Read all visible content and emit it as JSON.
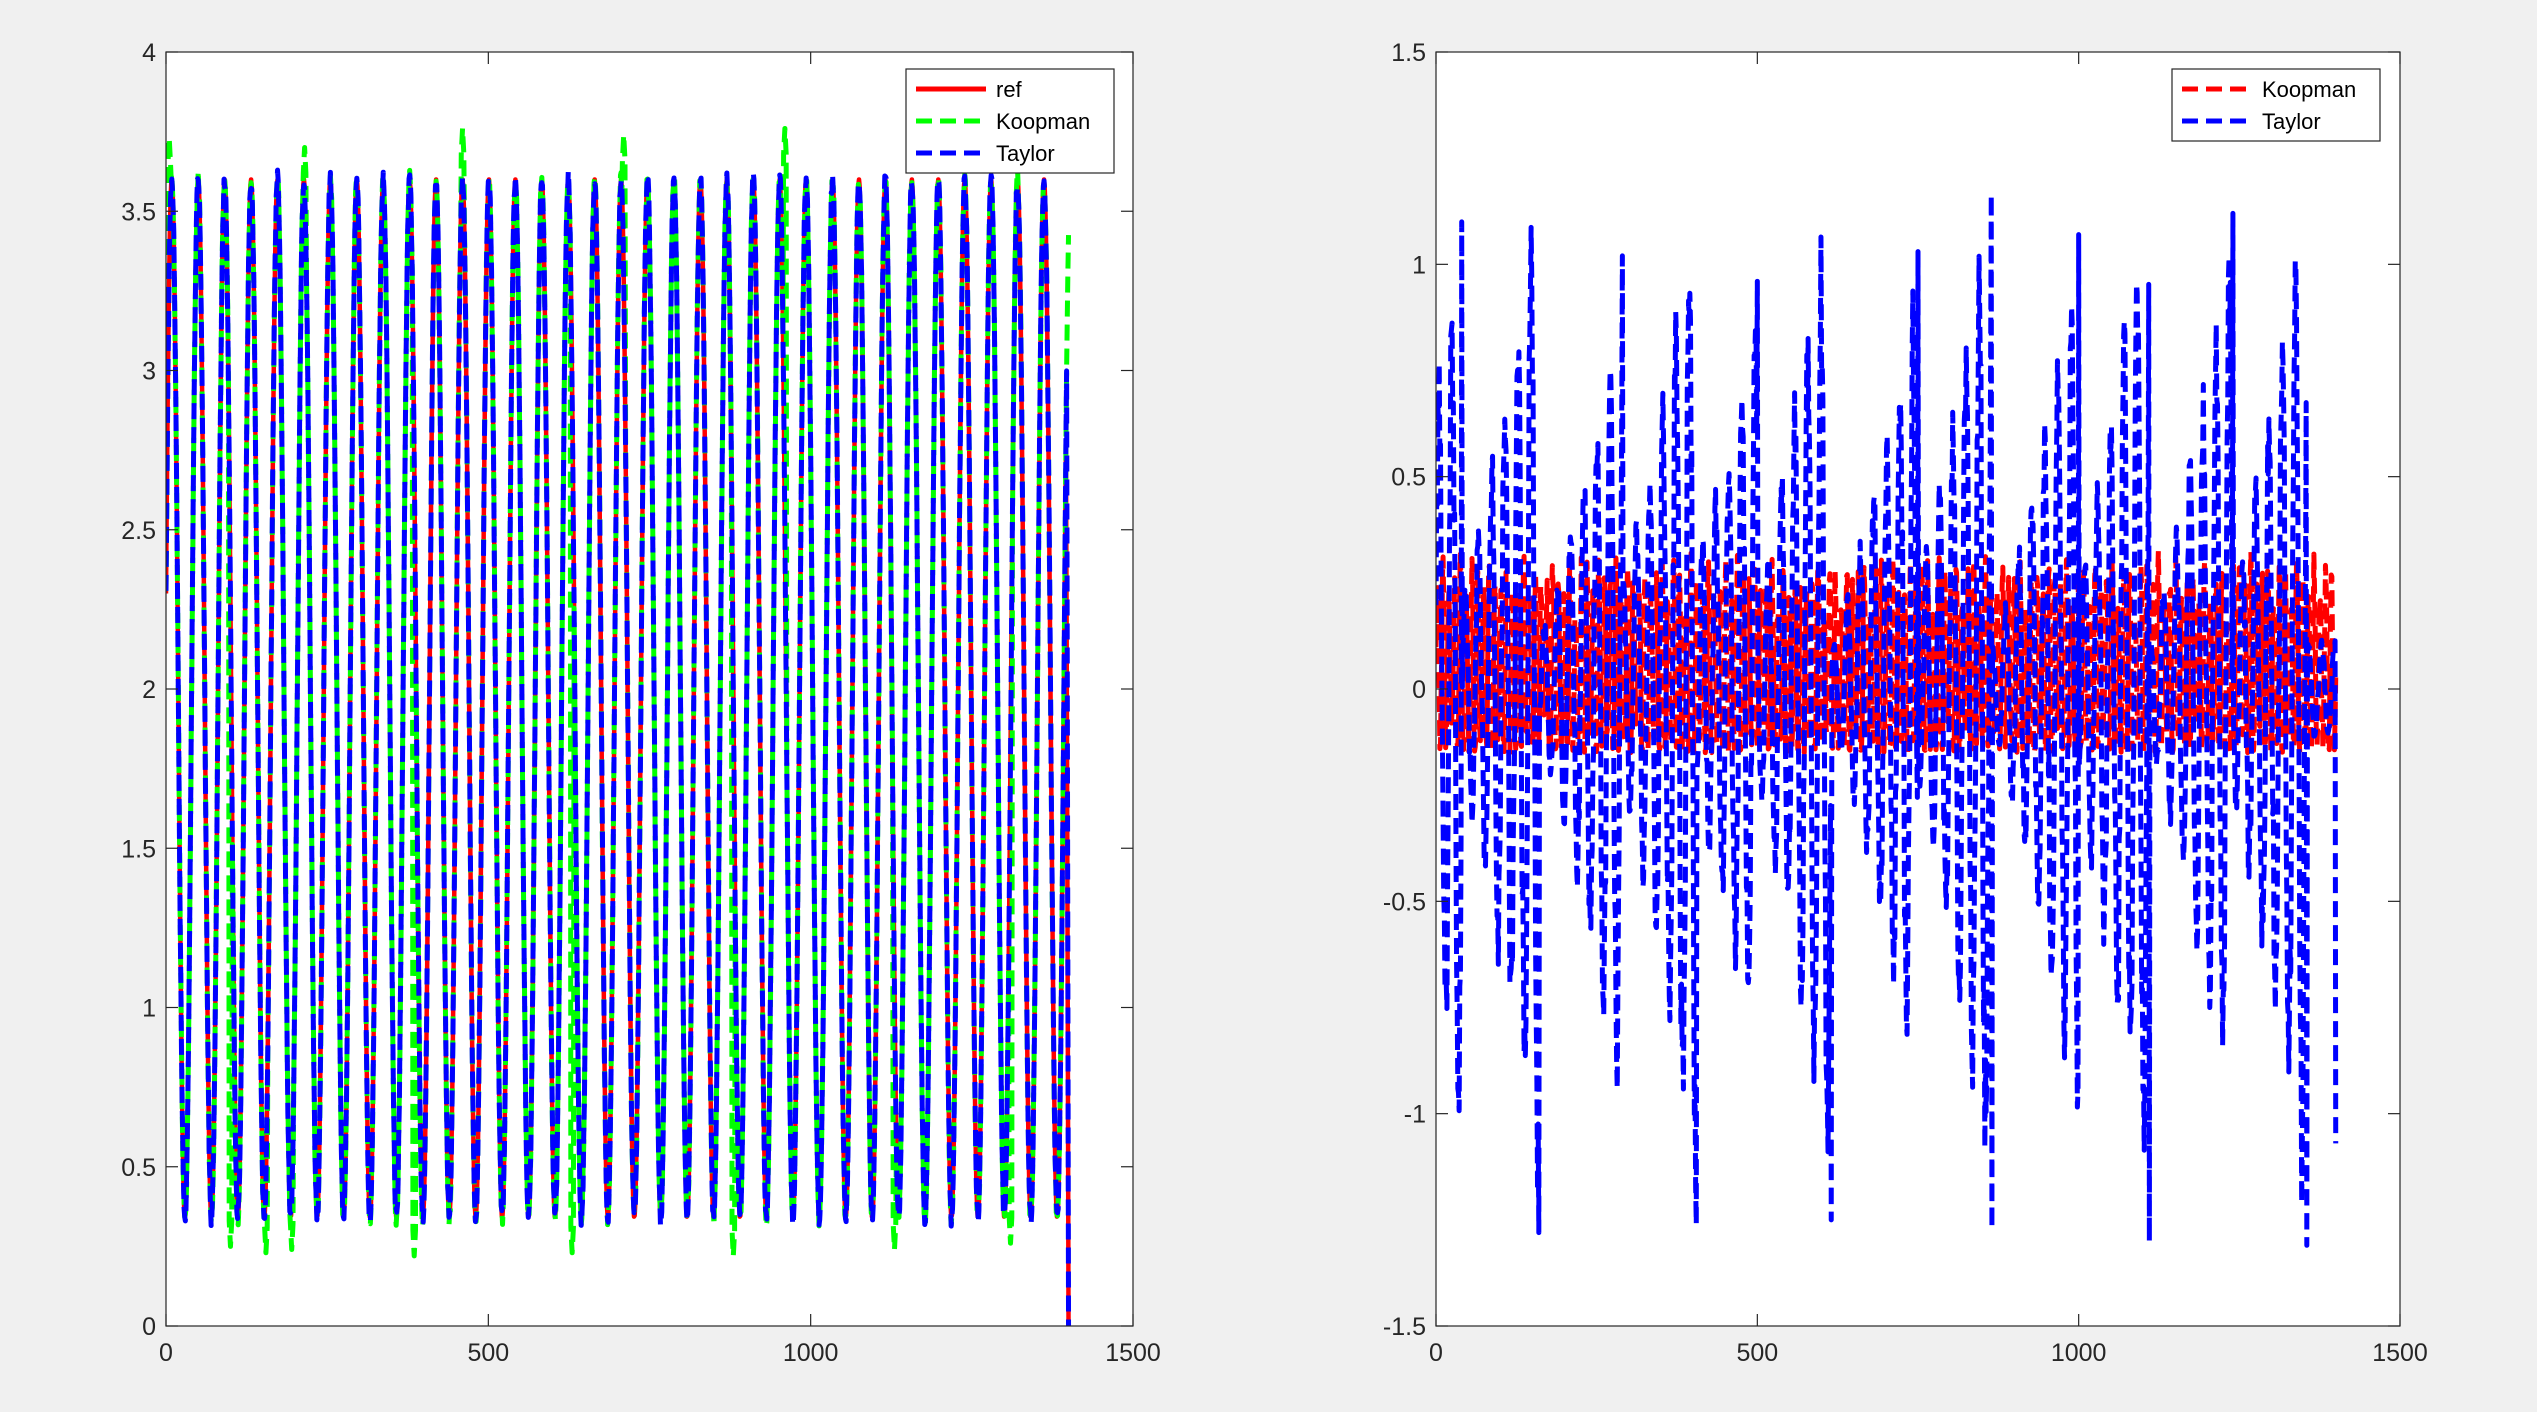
{
  "figure": {
    "background": "#f0f0f0",
    "axes_background": "#ffffff",
    "axis_color": "#262626"
  },
  "chart_data": [
    {
      "type": "line",
      "title": "",
      "xlabel": "",
      "ylabel": "",
      "xlim": [
        0,
        1500
      ],
      "ylim": [
        0,
        4
      ],
      "xticks": [
        0,
        500,
        1000,
        1500
      ],
      "xtick_labels": [
        "0",
        "500",
        "1000",
        "1500"
      ],
      "yticks": [
        0,
        0.5,
        1,
        1.5,
        2,
        2.5,
        3,
        3.5,
        4
      ],
      "ytick_labels": [
        "0",
        "0.5",
        "1",
        "1.5",
        "2",
        "2.5",
        "3",
        "3.5",
        "4"
      ],
      "grid": false,
      "legend_position": "top-right",
      "x_range": [
        0,
        1400
      ],
      "series": [
        {
          "name": "ref",
          "color": "#ff0000",
          "style": "solid",
          "description": "periodic oscillation between ~0.34 and ~3.6, about 34 cycles over 0-1400, final drop to 0 at ~1400",
          "period": 41,
          "min": 0.34,
          "max": 3.6,
          "start_value": 2.3,
          "end_value": 0
        },
        {
          "name": "Koopman",
          "color": "#00ff00",
          "style": "dashed",
          "description": "tracks ref with occasional overshoots",
          "period": 41,
          "min": 0.34,
          "max": 3.6,
          "start_value": 2.3,
          "overshoots": [
            {
              "x": 5,
              "y": 3.73
            },
            {
              "x": 215,
              "y": 3.7
            },
            {
              "x": 460,
              "y": 3.76
            },
            {
              "x": 710,
              "y": 3.74
            },
            {
              "x": 960,
              "y": 3.76
            }
          ],
          "undershoots": [
            {
              "x": 100,
              "y": 0.25
            },
            {
              "x": 155,
              "y": 0.23
            },
            {
              "x": 195,
              "y": 0.24
            },
            {
              "x": 385,
              "y": 0.22
            },
            {
              "x": 630,
              "y": 0.23
            },
            {
              "x": 880,
              "y": 0.22
            },
            {
              "x": 1130,
              "y": 0.24
            },
            {
              "x": 1310,
              "y": 0.26
            }
          ]
        },
        {
          "name": "Taylor",
          "color": "#0000ff",
          "style": "dashed",
          "description": "tracks ref closely, with a final spike to ~2.12 near x=1400",
          "period": 41,
          "min": 0.34,
          "max": 3.6,
          "start_value": 2.3,
          "end_spike": {
            "x": 1400,
            "y": 2.12
          }
        }
      ]
    },
    {
      "type": "line",
      "title": "",
      "xlabel": "",
      "ylabel": "",
      "xlim": [
        0,
        1500
      ],
      "ylim": [
        -1.5,
        1.5
      ],
      "xticks": [
        0,
        500,
        1000,
        1500
      ],
      "xtick_labels": [
        "0",
        "500",
        "1000",
        "1500"
      ],
      "yticks": [
        -1.5,
        -1,
        -0.5,
        0,
        0.5,
        1,
        1.5
      ],
      "ytick_labels": [
        "-1.5",
        "-1",
        "-0.5",
        "0",
        "0.5",
        "1",
        "1.5"
      ],
      "grid": false,
      "legend_position": "top-right",
      "x_range": [
        0,
        1400
      ],
      "series": [
        {
          "name": "Koopman",
          "color": "#ff0000",
          "style": "dashed",
          "description": "error oscillating between about -0.15 and 0.33",
          "envelope": {
            "min": -0.15,
            "max": 0.33
          }
        },
        {
          "name": "Taylor",
          "color": "#0000ff",
          "style": "dashed",
          "description": "error with growing envelopes, bursts recurring every ~245 samples",
          "peaks": [
            {
              "x": 40,
              "y": 1.1
            },
            {
              "x": 290,
              "y": 1.02
            },
            {
              "x": 500,
              "y": 0.96
            },
            {
              "x": 750,
              "y": 1.03
            },
            {
              "x": 1000,
              "y": 1.07
            },
            {
              "x": 1240,
              "y": 1.12
            }
          ],
          "troughs": [
            {
              "x": 160,
              "y": -1.28
            },
            {
              "x": 405,
              "y": -1.26
            },
            {
              "x": 615,
              "y": -1.25
            },
            {
              "x": 865,
              "y": -1.27
            },
            {
              "x": 1110,
              "y": -1.3
            },
            {
              "x": 1355,
              "y": -1.31
            }
          ],
          "end_value": -1.07
        }
      ]
    }
  ]
}
